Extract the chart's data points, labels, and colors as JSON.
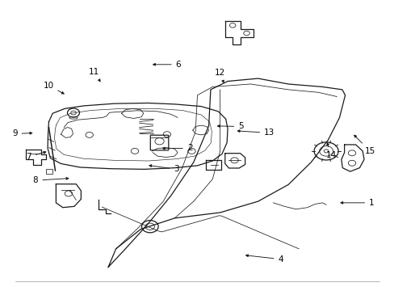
{
  "background_color": "#ffffff",
  "line_color": "#1a1a1a",
  "label_color": "#000000",
  "figsize": [
    4.89,
    3.6
  ],
  "dpi": 100,
  "parts": [
    {
      "id": "1",
      "comp": [
        0.87,
        0.295
      ],
      "label": [
        0.96,
        0.295
      ]
    },
    {
      "id": "2",
      "comp": [
        0.4,
        0.49
      ],
      "label": [
        0.48,
        0.49
      ]
    },
    {
      "id": "3",
      "comp": [
        0.365,
        0.43
      ],
      "label": [
        0.445,
        0.415
      ]
    },
    {
      "id": "4",
      "comp": [
        0.62,
        0.108
      ],
      "label": [
        0.72,
        0.093
      ]
    },
    {
      "id": "5",
      "comp": [
        0.545,
        0.57
      ],
      "label": [
        0.615,
        0.568
      ]
    },
    {
      "id": "6",
      "comp": [
        0.375,
        0.79
      ],
      "label": [
        0.45,
        0.79
      ]
    },
    {
      "id": "7",
      "comp": [
        0.108,
        0.48
      ],
      "label": [
        0.055,
        0.46
      ]
    },
    {
      "id": "8",
      "comp": [
        0.168,
        0.383
      ],
      "label": [
        0.073,
        0.375
      ]
    },
    {
      "id": "9",
      "comp": [
        0.072,
        0.545
      ],
      "label": [
        0.018,
        0.542
      ]
    },
    {
      "id": "10",
      "comp": [
        0.155,
        0.68
      ],
      "label": [
        0.107,
        0.715
      ]
    },
    {
      "id": "11",
      "comp": [
        0.248,
        0.72
      ],
      "label": [
        0.228,
        0.762
      ]
    },
    {
      "id": "12",
      "comp": [
        0.572,
        0.715
      ],
      "label": [
        0.56,
        0.76
      ]
    },
    {
      "id": "13",
      "comp": [
        0.598,
        0.553
      ],
      "label": [
        0.69,
        0.545
      ]
    },
    {
      "id": "14",
      "comp": [
        0.84,
        0.52
      ],
      "label": [
        0.853,
        0.465
      ]
    },
    {
      "id": "15",
      "comp": [
        0.908,
        0.545
      ],
      "label": [
        0.955,
        0.48
      ]
    }
  ]
}
